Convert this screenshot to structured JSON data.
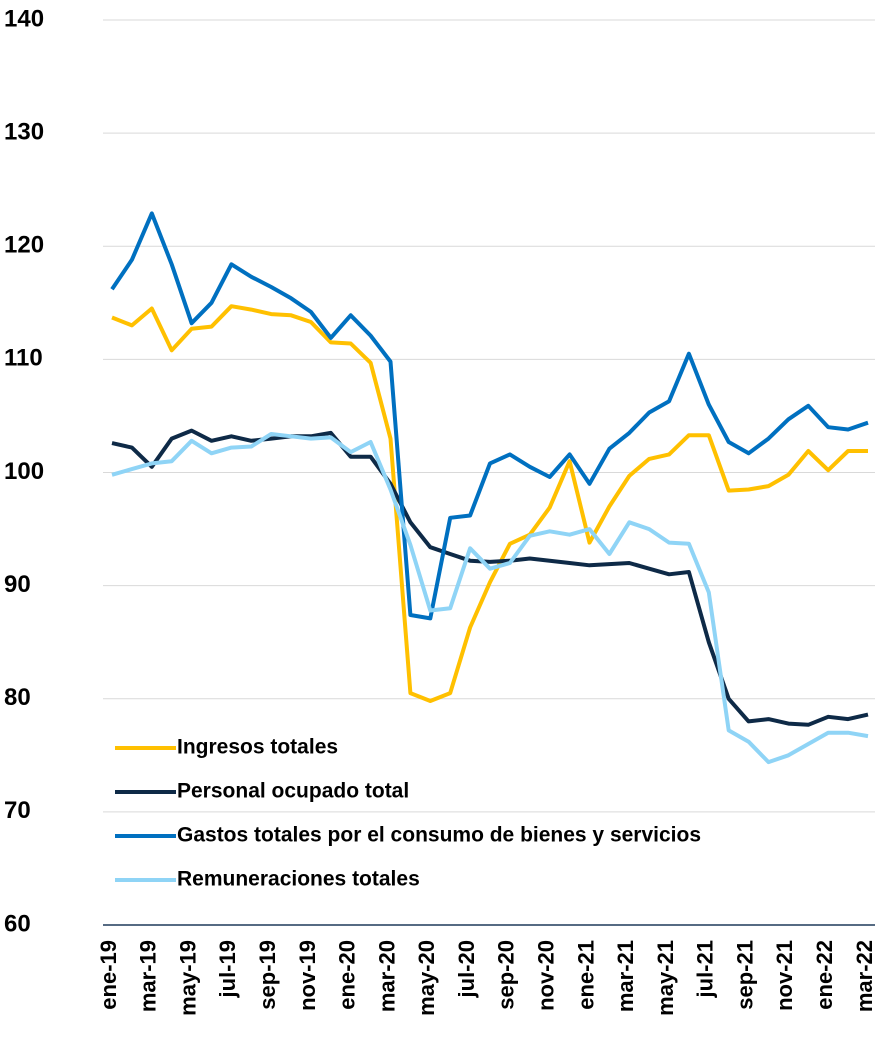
{
  "chart_data": {
    "type": "line",
    "categories": [
      "ene-19",
      null,
      "mar-19",
      null,
      "may-19",
      null,
      "jul-19",
      null,
      "sep-19",
      null,
      "nov-19",
      null,
      "ene-20",
      null,
      "mar-20",
      null,
      "may-20",
      null,
      "jul-20",
      null,
      "sep-20",
      null,
      "nov-20",
      null,
      "ene-21",
      null,
      "mar-21",
      null,
      "may-21",
      null,
      "jul-21",
      null,
      "sep-21",
      null,
      "nov-21",
      null,
      "ene-22",
      null,
      "mar-22"
    ],
    "series": [
      {
        "name": "Ingresos totales",
        "color": "#ffc000",
        "values": [
          113.7,
          113.0,
          114.5,
          110.8,
          112.7,
          112.9,
          114.7,
          114.4,
          114.0,
          113.9,
          113.3,
          111.5,
          111.4,
          109.7,
          103.0,
          80.5,
          79.8,
          80.5,
          86.3,
          90.3,
          93.7,
          94.5,
          96.9,
          101.0,
          93.8,
          97.0,
          99.7,
          101.2,
          101.6,
          103.3,
          103.3,
          98.4,
          98.5,
          98.8,
          99.8,
          101.9,
          100.2,
          101.9,
          101.9
        ]
      },
      {
        "name": "Personal ocupado total",
        "color": "#0e2a47",
        "values": [
          102.6,
          102.2,
          100.5,
          103.0,
          103.7,
          102.8,
          103.2,
          102.8,
          103.0,
          103.2,
          103.2,
          103.5,
          101.4,
          101.4,
          99.0,
          95.6,
          93.4,
          92.8,
          92.2,
          92.1,
          92.2,
          92.4,
          92.2,
          92.0,
          91.8,
          91.9,
          92.0,
          91.5,
          91.0,
          91.2,
          85.0,
          80.0,
          78.0,
          78.2,
          77.8,
          77.7,
          78.4,
          78.2,
          78.6
        ]
      },
      {
        "name": "Gastos totales por el consumo de bienes y servicios",
        "color": "#0070c0",
        "values": [
          116.2,
          118.8,
          122.9,
          118.4,
          113.2,
          115.0,
          118.4,
          117.3,
          116.4,
          115.4,
          114.2,
          111.9,
          113.9,
          112.1,
          109.8,
          87.4,
          87.1,
          96.0,
          96.2,
          100.8,
          101.6,
          100.5,
          99.6,
          101.6,
          99.0,
          102.1,
          103.5,
          105.3,
          106.3,
          110.5,
          106.0,
          102.7,
          101.7,
          103.0,
          104.7,
          105.9,
          104.0,
          103.8,
          104.4
        ]
      },
      {
        "name": "Remuneraciones totales",
        "color": "#8fd4f6",
        "values": [
          99.8,
          100.3,
          100.8,
          101.0,
          102.8,
          101.7,
          102.2,
          102.3,
          103.4,
          103.2,
          103.0,
          103.1,
          101.8,
          102.7,
          98.5,
          93.6,
          87.8,
          88.0,
          93.3,
          91.5,
          92.0,
          94.4,
          94.8,
          94.5,
          95.0,
          92.8,
          95.6,
          95.0,
          93.8,
          93.7,
          89.4,
          77.2,
          76.2,
          74.4,
          75.0,
          76.0,
          77.0,
          77.0,
          76.7
        ]
      }
    ],
    "ylim": [
      60,
      140
    ],
    "yticks": [
      60,
      70,
      80,
      90,
      100,
      110,
      120,
      130,
      140
    ],
    "grid": true,
    "legend": "lower left"
  }
}
